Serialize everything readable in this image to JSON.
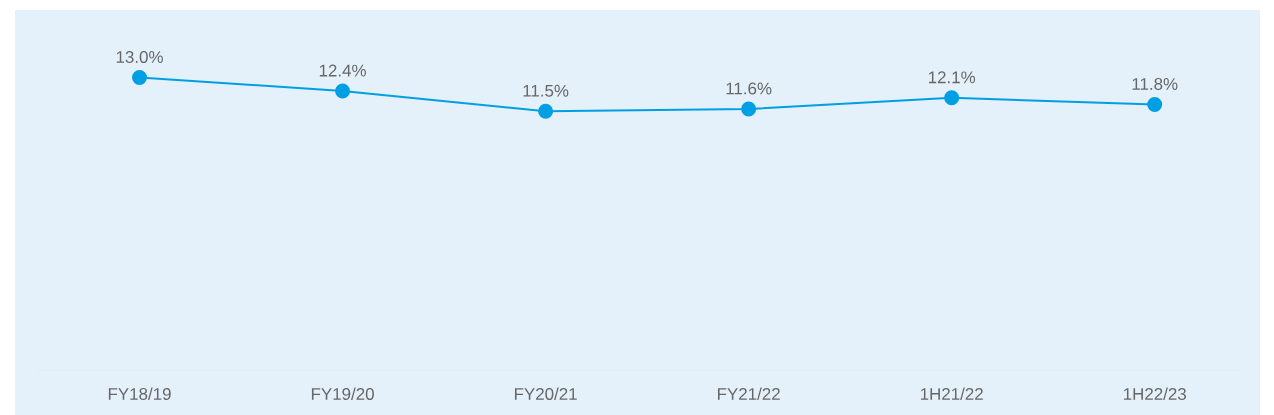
{
  "chart_data": {
    "type": "line",
    "categories": [
      "FY18/19",
      "FY19/20",
      "FY20/21",
      "FY21/22",
      "1H21/22",
      "1H22/23"
    ],
    "values": [
      13.0,
      12.4,
      11.5,
      11.6,
      12.1,
      11.8
    ],
    "value_labels": [
      "13.0%",
      "12.4%",
      "11.5%",
      "11.6%",
      "12.1%",
      "11.8%"
    ],
    "color": "#009fe3",
    "marker": "circle",
    "tick_labels": "x"
  }
}
